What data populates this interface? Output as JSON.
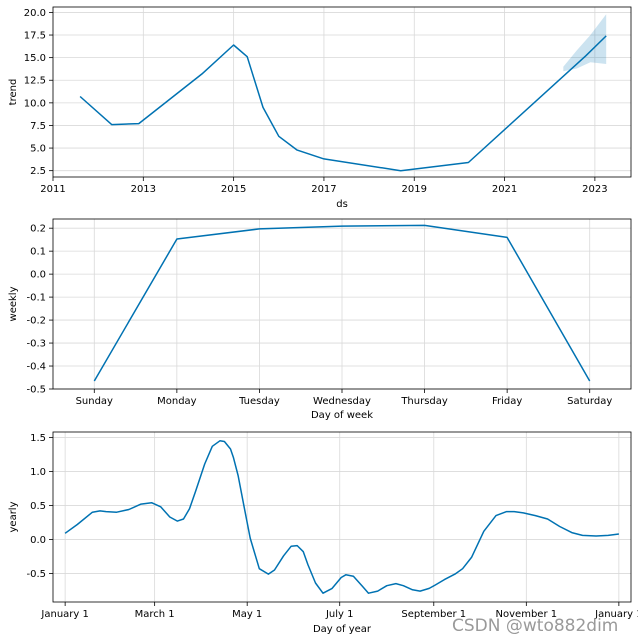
{
  "chart_data": [
    {
      "type": "line",
      "title": "",
      "xlabel": "ds",
      "ylabel": "trend",
      "xlim": [
        2011.0,
        2023.8
      ],
      "ylim": [
        1.8,
        20.6
      ],
      "grid": true,
      "x_ticks": [
        2011,
        2013,
        2015,
        2017,
        2019,
        2021,
        2023
      ],
      "x_tick_labels": [
        "2011",
        "2013",
        "2015",
        "2017",
        "2019",
        "2021",
        "2023"
      ],
      "y_ticks": [
        2.5,
        5.0,
        7.5,
        10.0,
        12.5,
        15.0,
        17.5,
        20.0
      ],
      "y_tick_labels": [
        "2.5",
        "5.0",
        "7.5",
        "10.0",
        "12.5",
        "15.0",
        "17.5",
        "20.0"
      ],
      "series": [
        {
          "color": "#0072B2",
          "x": [
            2011.6,
            2012.3,
            2012.9,
            2014.3,
            2015.0,
            2015.3,
            2015.65,
            2016.0,
            2016.4,
            2017.0,
            2018.7,
            2020.2,
            2022.8,
            2023.25
          ],
          "y": [
            10.7,
            7.6,
            7.7,
            13.2,
            16.4,
            15.1,
            9.5,
            6.3,
            4.8,
            3.8,
            2.5,
            3.4,
            15.2,
            17.4
          ]
        }
      ],
      "uncertainty_band": {
        "color": "#0072B2",
        "x": [
          2022.3,
          2022.6,
          2022.9,
          2023.25
        ],
        "upper": [
          14.0,
          15.8,
          17.5,
          19.8
        ],
        "lower": [
          13.5,
          13.8,
          14.5,
          14.3
        ]
      }
    },
    {
      "type": "line",
      "title": "",
      "xlabel": "Day of week",
      "ylabel": "weekly",
      "ylim": [
        -0.5,
        0.24
      ],
      "grid": true,
      "categories": [
        "Sunday",
        "Monday",
        "Tuesday",
        "Wednesday",
        "Thursday",
        "Friday",
        "Saturday"
      ],
      "y_ticks": [
        -0.5,
        -0.4,
        -0.3,
        -0.2,
        -0.1,
        0.0,
        0.1,
        0.2
      ],
      "y_tick_labels": [
        "-0.5",
        "-0.4",
        "-0.3",
        "-0.2",
        "-0.1",
        "0.0",
        "0.1",
        "0.2"
      ],
      "series": [
        {
          "color": "#0072B2",
          "values": [
            -0.465,
            0.153,
            0.197,
            0.209,
            0.212,
            0.16,
            -0.465
          ]
        }
      ]
    },
    {
      "type": "line",
      "title": "",
      "xlabel": "Day of year",
      "ylabel": "yearly",
      "xlim": [
        -8,
        373
      ],
      "ylim": [
        -0.92,
        1.58
      ],
      "grid": true,
      "x_ticks": [
        0,
        59,
        120,
        181,
        243,
        304,
        365
      ],
      "x_tick_labels": [
        "January 1",
        "March 1",
        "May 1",
        "July 1",
        "September 1",
        "November 1",
        "January 1"
      ],
      "y_ticks": [
        -0.5,
        0.0,
        0.5,
        1.0,
        1.5
      ],
      "y_tick_labels": [
        "-0.5",
        "0.0",
        "0.5",
        "1.0",
        "1.5"
      ],
      "series": [
        {
          "color": "#0072B2",
          "x": [
            0,
            8,
            18,
            23,
            27,
            34,
            42,
            50,
            57,
            63,
            69,
            74,
            78,
            82,
            86,
            92,
            97,
            102,
            105,
            109,
            111,
            114,
            118,
            122,
            128,
            134,
            138,
            144,
            149,
            153,
            157,
            160,
            165,
            170,
            176,
            182,
            185,
            190,
            196,
            200,
            206,
            212,
            218,
            223,
            229,
            234,
            240,
            244,
            250,
            257,
            262,
            268,
            276,
            284,
            291,
            296,
            302,
            310,
            318,
            326,
            334,
            341,
            350,
            358,
            365
          ],
          "y": [
            0.09,
            0.22,
            0.4,
            0.42,
            0.41,
            0.4,
            0.44,
            0.52,
            0.54,
            0.48,
            0.33,
            0.27,
            0.3,
            0.45,
            0.71,
            1.11,
            1.37,
            1.45,
            1.44,
            1.33,
            1.2,
            0.94,
            0.48,
            0.02,
            -0.43,
            -0.51,
            -0.45,
            -0.24,
            -0.1,
            -0.09,
            -0.18,
            -0.37,
            -0.64,
            -0.79,
            -0.72,
            -0.56,
            -0.52,
            -0.54,
            -0.69,
            -0.79,
            -0.76,
            -0.68,
            -0.65,
            -0.68,
            -0.74,
            -0.76,
            -0.72,
            -0.67,
            -0.59,
            -0.51,
            -0.43,
            -0.26,
            0.12,
            0.35,
            0.41,
            0.41,
            0.39,
            0.35,
            0.3,
            0.19,
            0.1,
            0.06,
            0.05,
            0.06,
            0.08
          ]
        }
      ]
    }
  ],
  "watermark": {
    "text": "CSDN @wto882dim",
    "color": "#9a9a9a"
  }
}
